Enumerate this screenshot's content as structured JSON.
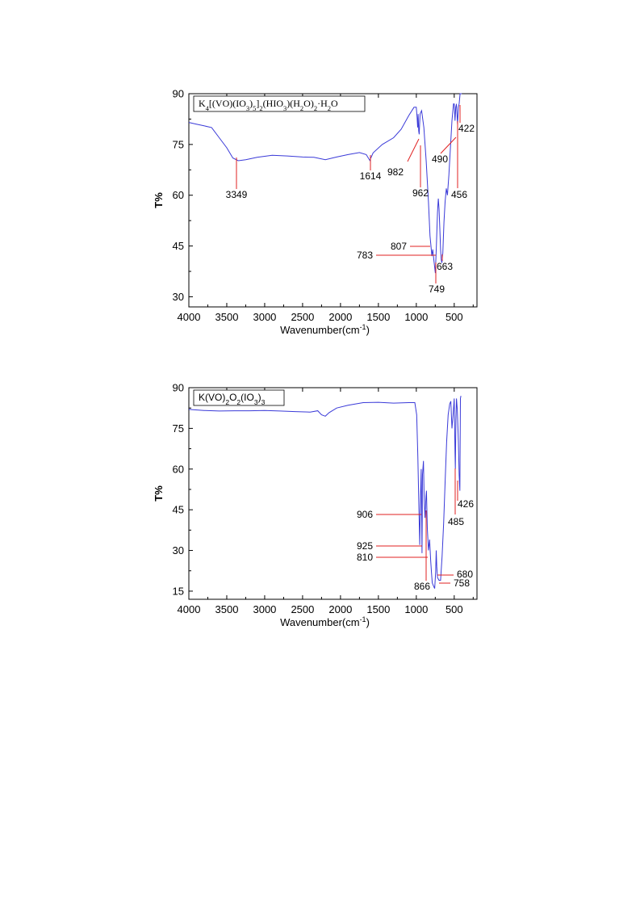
{
  "chart_data": [
    {
      "type": "line",
      "xlabel": "Wavenumber(cm",
      "xlabel_sup": "-1",
      "xlabel_close": ")",
      "ylabel": "T%",
      "xlim": [
        4000,
        200
      ],
      "ylim": [
        27,
        90
      ],
      "x_ticks": [
        4000,
        3500,
        3000,
        2500,
        2000,
        1500,
        1000,
        500
      ],
      "x_tick_labels": [
        "4000",
        "3500",
        "3000",
        "2500",
        "2000",
        "1500",
        "1000",
        "500"
      ],
      "y_ticks": [
        30,
        45,
        60,
        75,
        90
      ],
      "y_tick_labels": [
        "30",
        "45",
        "60",
        "75",
        "90"
      ],
      "legend": {
        "parts": [
          {
            "t": "K",
            "s": "n"
          },
          {
            "t": "4",
            "s": "sub"
          },
          {
            "t": "[(VO)(IO",
            "s": "n"
          },
          {
            "t": "3",
            "s": "sub"
          },
          {
            "t": ")",
            "s": "n"
          },
          {
            "t": "5",
            "s": "sub"
          },
          {
            "t": "]",
            "s": "n"
          },
          {
            "t": "2",
            "s": "sub"
          },
          {
            "t": "(HIO",
            "s": "n"
          },
          {
            "t": "3",
            "s": "sub"
          },
          {
            "t": ")(H",
            "s": "n"
          },
          {
            "t": "2",
            "s": "sub"
          },
          {
            "t": "O)",
            "s": "n"
          },
          {
            "t": "2",
            "s": "sub"
          },
          {
            "t": "·H",
            "s": "n"
          },
          {
            "t": "2",
            "s": "sub"
          },
          {
            "t": "O",
            "s": "n"
          }
        ],
        "placement": "top-left"
      },
      "series": [
        {
          "color": "#3a3ad8",
          "points": [
            [
              4000,
              81.5
            ],
            [
              3900,
              81
            ],
            [
              3800,
              80.5
            ],
            [
              3700,
              80
            ],
            [
              3600,
              77
            ],
            [
              3500,
              74
            ],
            [
              3420,
              71
            ],
            [
              3349,
              70.2
            ],
            [
              3250,
              70.5
            ],
            [
              3100,
              71.2
            ],
            [
              2900,
              71.8
            ],
            [
              2700,
              71.6
            ],
            [
              2500,
              71.3
            ],
            [
              2350,
              71.2
            ],
            [
              2200,
              70.5
            ],
            [
              2050,
              71.3
            ],
            [
              1900,
              72
            ],
            [
              1750,
              72.6
            ],
            [
              1660,
              72
            ],
            [
              1614,
              70.3
            ],
            [
              1570,
              72.5
            ],
            [
              1450,
              75
            ],
            [
              1300,
              77
            ],
            [
              1200,
              79.5
            ],
            [
              1100,
              83.5
            ],
            [
              1030,
              86
            ],
            [
              1000,
              86
            ],
            [
              990,
              83
            ],
            [
              982,
              80
            ],
            [
              976,
              84
            ],
            [
              968,
              79
            ],
            [
              962,
              78
            ],
            [
              950,
              84
            ],
            [
              930,
              85
            ],
            [
              900,
              80
            ],
            [
              870,
              70
            ],
            [
              840,
              58
            ],
            [
              820,
              48
            ],
            [
              807,
              45
            ],
            [
              795,
              42
            ],
            [
              783,
              44
            ],
            [
              770,
              41
            ],
            [
              749,
              37
            ],
            [
              735,
              45
            ],
            [
              720,
              55
            ],
            [
              710,
              59
            ],
            [
              700,
              56
            ],
            [
              690,
              50
            ],
            [
              680,
              44
            ],
            [
              672,
              41
            ],
            [
              663,
              40
            ],
            [
              650,
              43
            ],
            [
              635,
              52
            ],
            [
              620,
              58
            ],
            [
              605,
              62
            ],
            [
              590,
              60
            ],
            [
              570,
              66
            ],
            [
              550,
              74
            ],
            [
              530,
              82
            ],
            [
              510,
              87
            ],
            [
              500,
              87
            ],
            [
              490,
              82
            ],
            [
              480,
              86
            ],
            [
              470,
              87
            ],
            [
              456,
              81
            ],
            [
              445,
              86
            ],
            [
              435,
              87
            ],
            [
              422,
              90
            ],
            [
              400,
              90
            ]
          ]
        }
      ],
      "annotations": [
        {
          "label": "3349",
          "x": 3349,
          "y": 70.2
        },
        {
          "label": "1614",
          "x": 1614,
          "y": 70.3
        },
        {
          "label": "982",
          "x": 982,
          "y": 80
        },
        {
          "label": "962",
          "x": 962,
          "y": 78
        },
        {
          "label": "490",
          "x": 490,
          "y": 82
        },
        {
          "label": "422",
          "x": 422,
          "y": 84
        },
        {
          "label": "456",
          "x": 456,
          "y": 81
        },
        {
          "label": "807",
          "x": 807,
          "y": 45
        },
        {
          "label": "783",
          "x": 783,
          "y": 44
        },
        {
          "label": "663",
          "x": 663,
          "y": 40
        },
        {
          "label": "749",
          "x": 749,
          "y": 37
        }
      ]
    },
    {
      "type": "line",
      "xlabel": "Wavenumber(cm",
      "xlabel_sup": "-1",
      "xlabel_close": ")",
      "ylabel": "T%",
      "xlim": [
        4000,
        200
      ],
      "ylim": [
        12,
        90
      ],
      "x_ticks": [
        4000,
        3500,
        3000,
        2500,
        2000,
        1500,
        1000,
        500
      ],
      "x_tick_labels": [
        "4000",
        "3500",
        "3000",
        "2500",
        "2000",
        "1500",
        "1000",
        "500"
      ],
      "y_ticks": [
        15,
        30,
        45,
        60,
        75,
        90
      ],
      "y_tick_labels": [
        "15",
        "30",
        "45",
        "60",
        "75",
        "90"
      ],
      "legend": {
        "parts": [
          {
            "t": "K(VO)",
            "s": "n"
          },
          {
            "t": "2",
            "s": "sub"
          },
          {
            "t": "O",
            "s": "n"
          },
          {
            "t": "2",
            "s": "sub"
          },
          {
            "t": "(IO",
            "s": "n"
          },
          {
            "t": "3",
            "s": "sub"
          },
          {
            "t": ")",
            "s": "n"
          },
          {
            "t": "3",
            "s": "sub"
          }
        ],
        "placement": "top-left"
      },
      "series": [
        {
          "color": "#3a3ad8",
          "points": [
            [
              4000,
              82
            ],
            [
              3800,
              81.6
            ],
            [
              3600,
              81.4
            ],
            [
              3400,
              81.5
            ],
            [
              3200,
              81.5
            ],
            [
              3000,
              81.6
            ],
            [
              2800,
              81.4
            ],
            [
              2600,
              81.2
            ],
            [
              2400,
              81
            ],
            [
              2300,
              81.5
            ],
            [
              2250,
              80
            ],
            [
              2200,
              79.5
            ],
            [
              2150,
              80.8
            ],
            [
              2050,
              82.5
            ],
            [
              1900,
              83.5
            ],
            [
              1700,
              84.5
            ],
            [
              1500,
              84.6
            ],
            [
              1300,
              84.3
            ],
            [
              1100,
              84.5
            ],
            [
              1020,
              84.5
            ],
            [
              995,
              80
            ],
            [
              980,
              65
            ],
            [
              965,
              45
            ],
            [
              955,
              32
            ],
            [
              945,
              50
            ],
            [
              935,
              60
            ],
            [
              925,
              29
            ],
            [
              918,
              58
            ],
            [
              906,
              63
            ],
            [
              897,
              50
            ],
            [
              885,
              42
            ],
            [
              873,
              50
            ],
            [
              866,
              52
            ],
            [
              855,
              38
            ],
            [
              840,
              30
            ],
            [
              825,
              34
            ],
            [
              810,
              26
            ],
            [
              800,
              22
            ],
            [
              790,
              18
            ],
            [
              775,
              17
            ],
            [
              758,
              16
            ],
            [
              745,
              22
            ],
            [
              738,
              30
            ],
            [
              730,
              24
            ],
            [
              720,
              20
            ],
            [
              700,
              19
            ],
            [
              680,
              19
            ],
            [
              660,
              28
            ],
            [
              640,
              40
            ],
            [
              620,
              55
            ],
            [
              600,
              70
            ],
            [
              580,
              80
            ],
            [
              560,
              84
            ],
            [
              545,
              85
            ],
            [
              530,
              75
            ],
            [
              515,
              80
            ],
            [
              500,
              86
            ],
            [
              490,
              66
            ],
            [
              485,
              60
            ],
            [
              478,
              78
            ],
            [
              470,
              86
            ],
            [
              460,
              82
            ],
            [
              445,
              70
            ],
            [
              435,
              58
            ],
            [
              426,
              52
            ],
            [
              418,
              86
            ],
            [
              412,
              87
            ]
          ]
        }
      ],
      "annotations": [
        {
          "label": "906",
          "x": 906,
          "y": 42
        },
        {
          "label": "925",
          "x": 925,
          "y": 29
        },
        {
          "label": "810",
          "x": 810,
          "y": 26
        },
        {
          "label": "866",
          "x": 866,
          "y": 46
        },
        {
          "label": "758",
          "x": 758,
          "y": 16
        },
        {
          "label": "680",
          "x": 680,
          "y": 19
        },
        {
          "label": "485",
          "x": 485,
          "y": 60
        },
        {
          "label": "426",
          "x": 426,
          "y": 52
        }
      ]
    }
  ]
}
